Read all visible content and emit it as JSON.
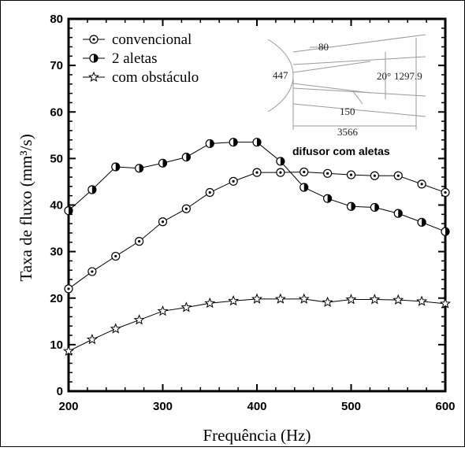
{
  "chart_data": {
    "type": "line",
    "xlabel": "Frequência (Hz)",
    "ylabel": "Taxa de fluxo (mm³/s)",
    "xlim": [
      200,
      600
    ],
    "ylim": [
      0,
      80
    ],
    "xticks": [
      "200",
      "300",
      "400",
      "500",
      "600"
    ],
    "yticks": [
      "0",
      "10",
      "20",
      "30",
      "40",
      "50",
      "60",
      "70",
      "80"
    ],
    "grid": false,
    "legend_position": "top-left",
    "x": [
      200,
      225,
      250,
      275,
      300,
      325,
      350,
      375,
      400,
      425,
      450,
      475,
      500,
      525,
      550,
      575,
      600
    ],
    "series": [
      {
        "name": "convencional",
        "marker": "circle-dot",
        "values": [
          22.0,
          25.7,
          29.0,
          32.2,
          36.4,
          39.2,
          42.7,
          45.1,
          47.0,
          47.0,
          47.1,
          46.8,
          46.5,
          46.3,
          46.3,
          44.5,
          42.7
        ]
      },
      {
        "name": "2 aletas",
        "marker": "half-filled-circle",
        "values": [
          38.8,
          43.3,
          48.2,
          47.9,
          49.0,
          50.3,
          53.2,
          53.5,
          53.5,
          49.4,
          43.8,
          41.4,
          39.7,
          39.5,
          38.2,
          36.3,
          34.3
        ]
      },
      {
        "name": "com obstáculo",
        "marker": "star",
        "values": [
          8.6,
          11.1,
          13.4,
          15.3,
          17.2,
          18.0,
          18.9,
          19.4,
          19.8,
          19.8,
          19.8,
          19.1,
          19.7,
          19.7,
          19.6,
          19.3,
          18.8
        ]
      }
    ],
    "inset": {
      "caption": "difusor com aletas",
      "dimensions": [
        "80",
        "447",
        "20°",
        "1297.9",
        "150",
        "3566"
      ]
    }
  }
}
